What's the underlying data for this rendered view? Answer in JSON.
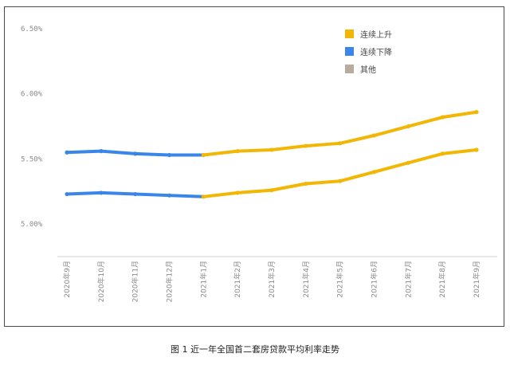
{
  "chart_data": {
    "type": "line",
    "title": "图 1  近一年全国首二套房贷款平均利率走势",
    "x": [
      "2020年9月",
      "2020年10月",
      "2020年11月",
      "2020年12月",
      "2021年1月",
      "2021年2月",
      "2021年3月",
      "2021年4月",
      "2021年5月",
      "2021年6月",
      "2021年7月",
      "2021年8月",
      "2021年9月"
    ],
    "yticks": [
      "5.00%",
      "5.50%",
      "6.00%",
      "6.50%"
    ],
    "ylim": [
      4.75,
      6.5
    ],
    "grid": false,
    "legend_position": "top-right",
    "legend": [
      {
        "name": "连续上升",
        "color": "#f2b705"
      },
      {
        "name": "连续下降",
        "color": "#3a86e8"
      },
      {
        "name": "其他",
        "color": "#b8aca0"
      }
    ],
    "series": [
      {
        "values": [
          5.55,
          5.56,
          5.54,
          5.53,
          5.53,
          5.56,
          5.57,
          5.6,
          5.62,
          5.68,
          5.75,
          5.82,
          5.86
        ]
      },
      {
        "values": [
          5.23,
          5.24,
          5.23,
          5.22,
          5.21,
          5.24,
          5.26,
          5.31,
          5.33,
          5.4,
          5.47,
          5.54,
          5.57
        ]
      }
    ],
    "segment_colors": [
      "#3a86e8",
      "#3a86e8",
      "#3a86e8",
      "#3a86e8",
      "#f2b705",
      "#f2b705",
      "#f2b705",
      "#f2b705",
      "#f2b705",
      "#f2b705",
      "#f2b705",
      "#f2b705"
    ]
  }
}
